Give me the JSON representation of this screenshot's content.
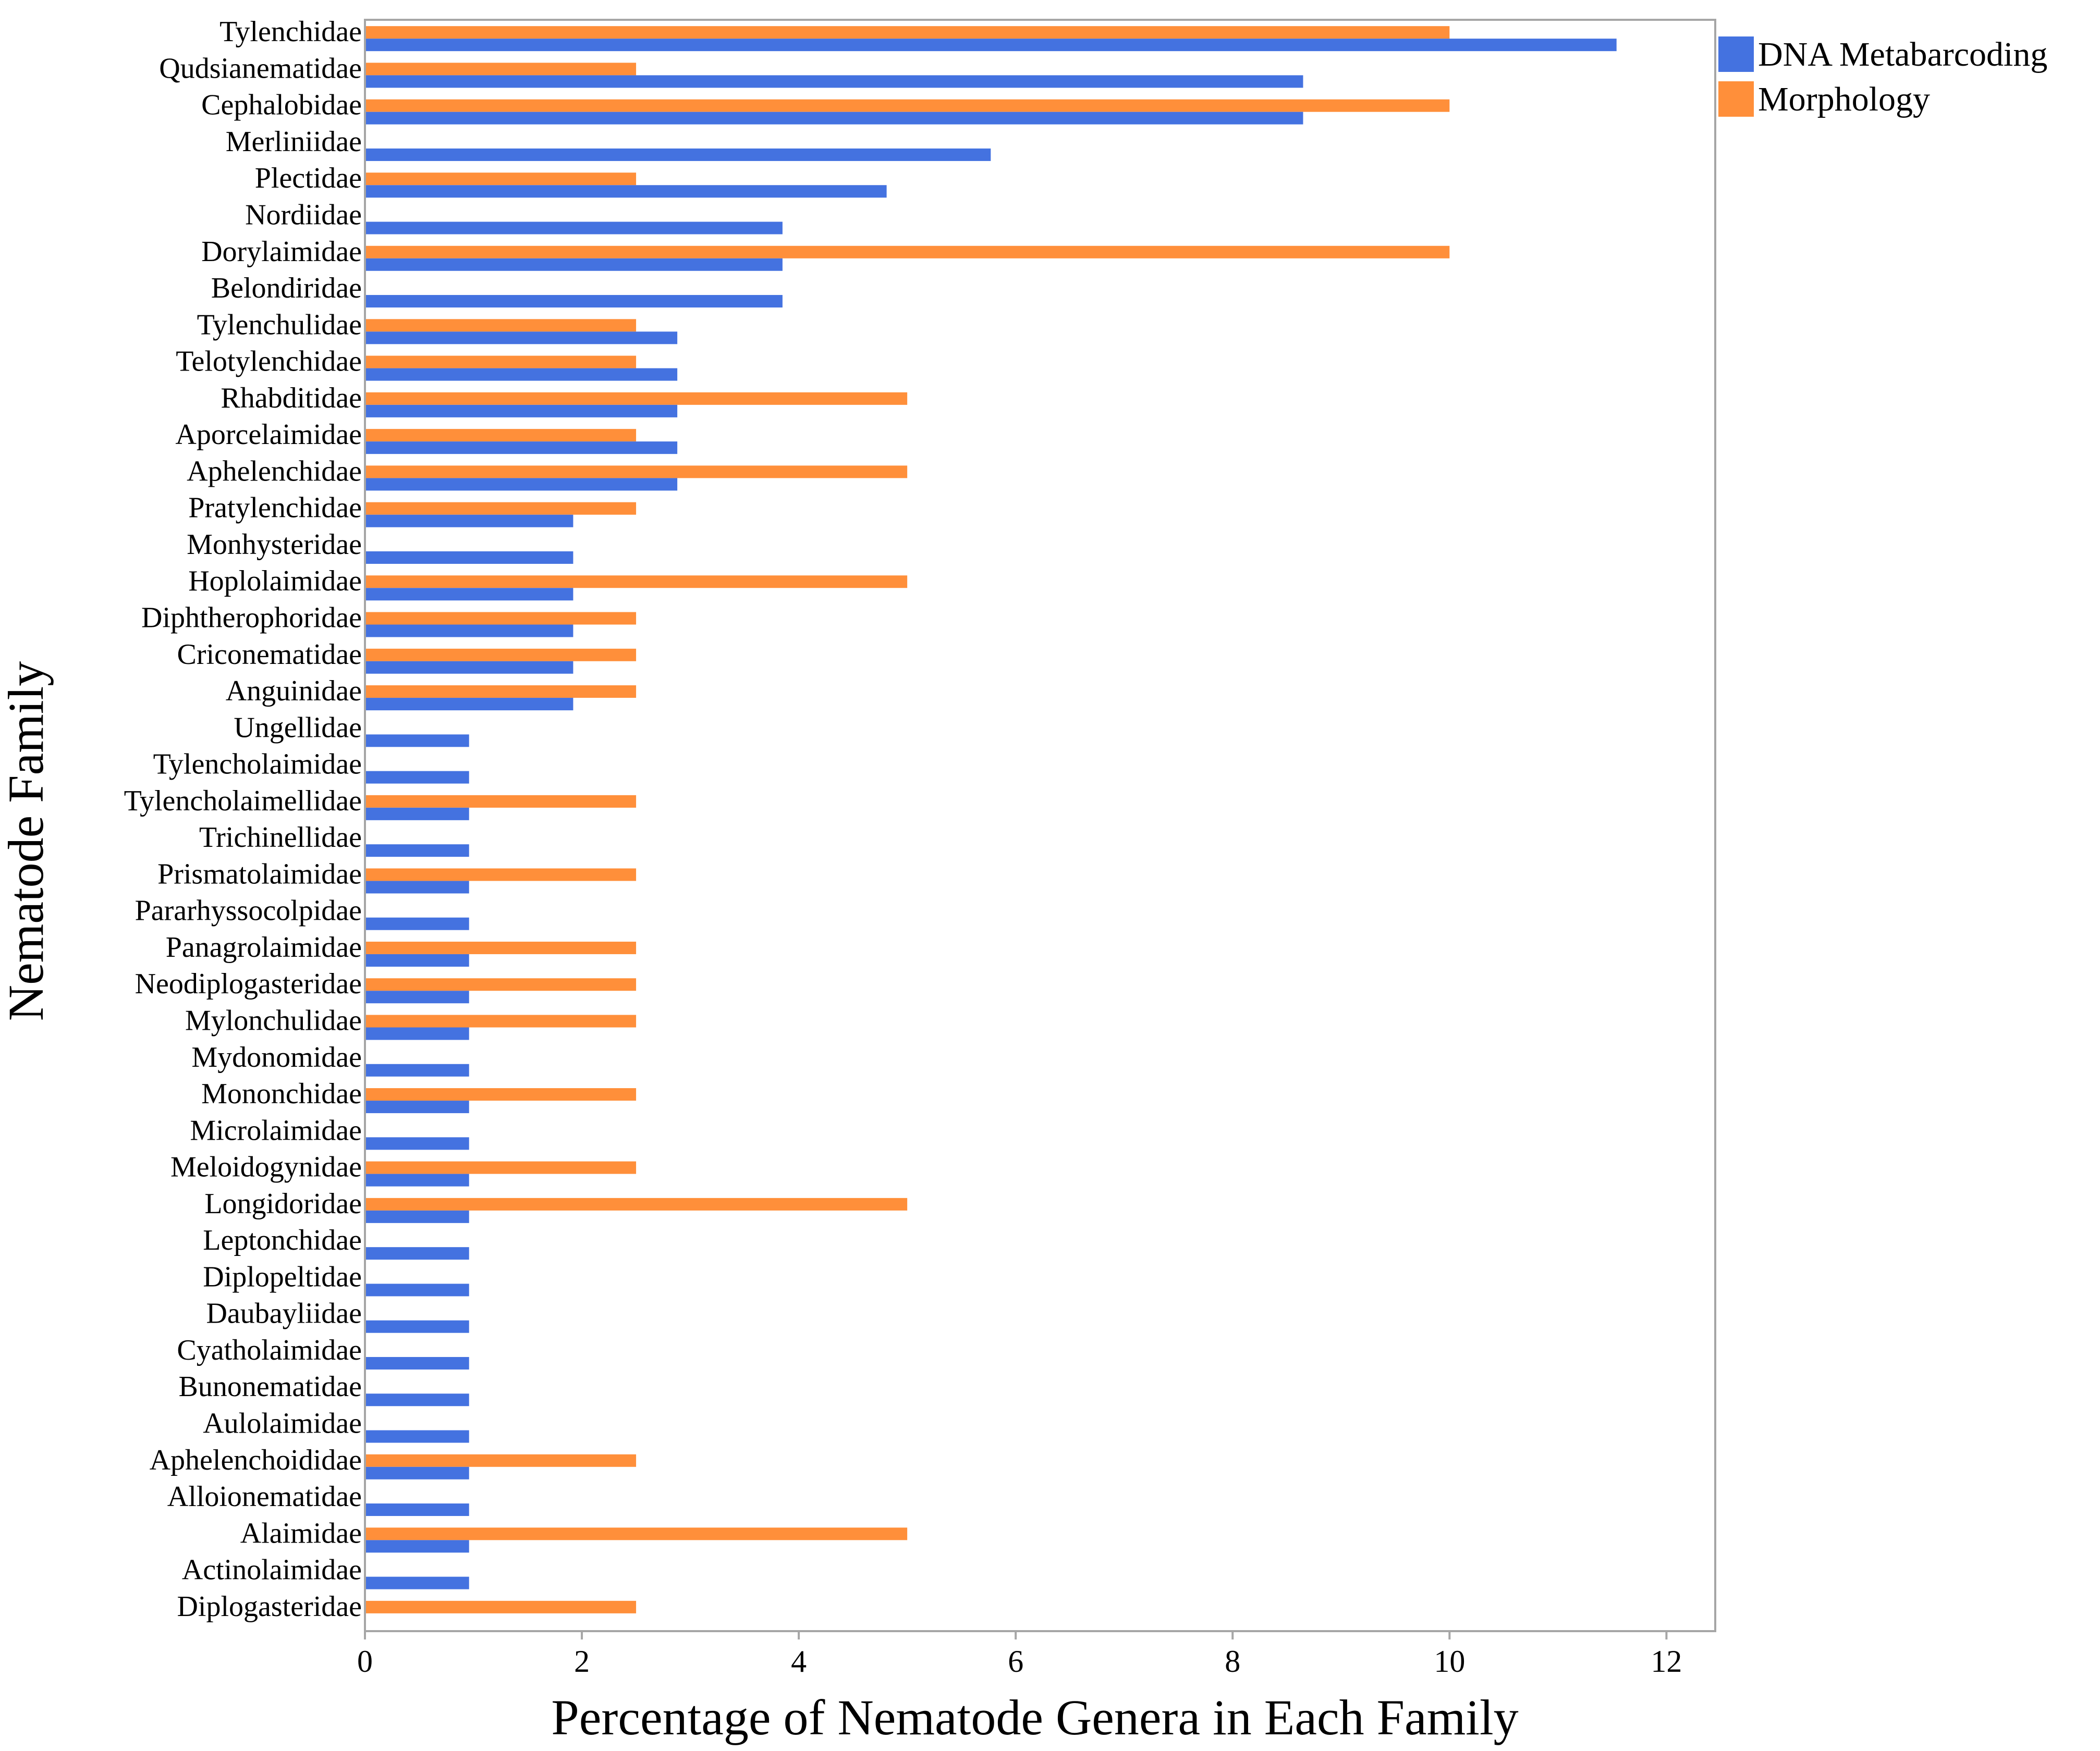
{
  "chart_data": {
    "type": "bar",
    "orientation": "horizontal",
    "xlabel": "Percentage of Nematode Genera in Each Family",
    "ylabel": "Nematode Family",
    "xlim": [
      0,
      12.45
    ],
    "xticks": [
      0,
      2,
      4,
      6,
      8,
      10,
      12
    ],
    "grid": false,
    "legend_position": "top-right",
    "categories": [
      "Tylenchidae",
      "Qudsianematidae",
      "Cephalobidae",
      "Merliniidae",
      "Plectidae",
      "Nordiidae",
      "Dorylaimidae",
      "Belondiridae",
      "Tylenchulidae",
      "Telotylenchidae",
      "Rhabditidae",
      "Aporcelaimidae",
      "Aphelenchidae",
      "Pratylenchidae",
      "Monhysteridae",
      "Hoplolaimidae",
      "Diphtherophoridae",
      "Criconematidae",
      "Anguinidae",
      "Ungellidae",
      "Tylencholaimidae",
      "Tylencholaimellidae",
      "Trichinellidae",
      "Prismatolaimidae",
      "Pararhyssocolpidae",
      "Panagrolaimidae",
      "Neodiplogasteridae",
      "Mylonchulidae",
      "Mydonomidae",
      "Mononchidae",
      "Microlaimidae",
      "Meloidogynidae",
      "Longidoridae",
      "Leptonchidae",
      "Diplopeltidae",
      "Daubayliidae",
      "Cyatholaimidae",
      "Bunonematidae",
      "Aulolaimidae",
      "Aphelenchoididae",
      "Alloionematidae",
      "Alaimidae",
      "Actinolaimidae",
      "Diplogasteridae"
    ],
    "series": [
      {
        "name": "DNA Metabarcoding",
        "color": "#4472e0",
        "values": [
          11.54,
          8.65,
          8.65,
          5.77,
          4.81,
          3.85,
          3.85,
          3.85,
          2.88,
          2.88,
          2.88,
          2.88,
          2.88,
          1.92,
          1.92,
          1.92,
          1.92,
          1.92,
          1.92,
          0.96,
          0.96,
          0.96,
          0.96,
          0.96,
          0.96,
          0.96,
          0.96,
          0.96,
          0.96,
          0.96,
          0.96,
          0.96,
          0.96,
          0.96,
          0.96,
          0.96,
          0.96,
          0.96,
          0.96,
          0.96,
          0.96,
          0.96,
          0.96,
          0
        ]
      },
      {
        "name": "Morphology",
        "color": "#ff8f3a",
        "values": [
          10,
          2.5,
          10,
          0,
          2.5,
          0,
          10,
          0,
          2.5,
          2.5,
          5,
          2.5,
          5,
          2.5,
          0,
          5,
          2.5,
          2.5,
          2.5,
          0,
          0,
          2.5,
          0,
          2.5,
          0,
          2.5,
          2.5,
          2.5,
          0,
          2.5,
          0,
          2.5,
          5,
          0,
          0,
          0,
          0,
          0,
          0,
          2.5,
          0,
          5,
          0,
          2.5
        ]
      }
    ]
  }
}
